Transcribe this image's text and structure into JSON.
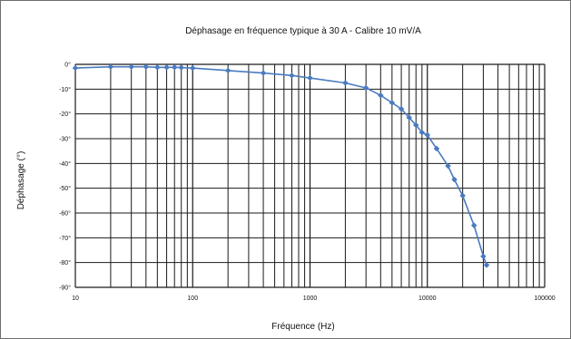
{
  "chart_data": {
    "type": "line",
    "title": "Déphasage en fréquence typique à 30 A - Calibre 10 mV/A",
    "xlabel": "Fréquence (Hz)",
    "ylabel": "Déphasage (°)",
    "x_scale": "log",
    "xlim": [
      10,
      100000
    ],
    "ylim": [
      -90,
      0
    ],
    "x_ticks": [
      "10",
      "100",
      "1000",
      "10000",
      "100000"
    ],
    "y_ticks": [
      "0°",
      "-10°",
      "-20°",
      "-30°",
      "-40°",
      "-50°",
      "-60°",
      "-70°",
      "-80°",
      "-90°"
    ],
    "grid": true,
    "legend": "none",
    "line_color": "#4a7bbf",
    "series": [
      {
        "x": [
          10,
          20,
          30,
          40,
          50,
          60,
          70,
          80,
          100,
          200,
          400,
          700,
          1000,
          2000,
          3000,
          4000,
          5000,
          6000,
          7000,
          8000,
          9000,
          10000,
          12000,
          15000,
          17000,
          20000,
          25000,
          30000,
          32000
        ],
        "y": [
          -1.5,
          -1.0,
          -1.0,
          -1.0,
          -1.2,
          -1.2,
          -1.2,
          -1.3,
          -1.5,
          -2.5,
          -3.5,
          -4.5,
          -5.5,
          -7.5,
          -9.5,
          -12.5,
          -15.5,
          -18.0,
          -21.5,
          -24.5,
          -27.5,
          -28.5,
          -34.0,
          -41.0,
          -46.5,
          -53.0,
          -65.0,
          -77.5,
          -81.0
        ]
      }
    ]
  }
}
